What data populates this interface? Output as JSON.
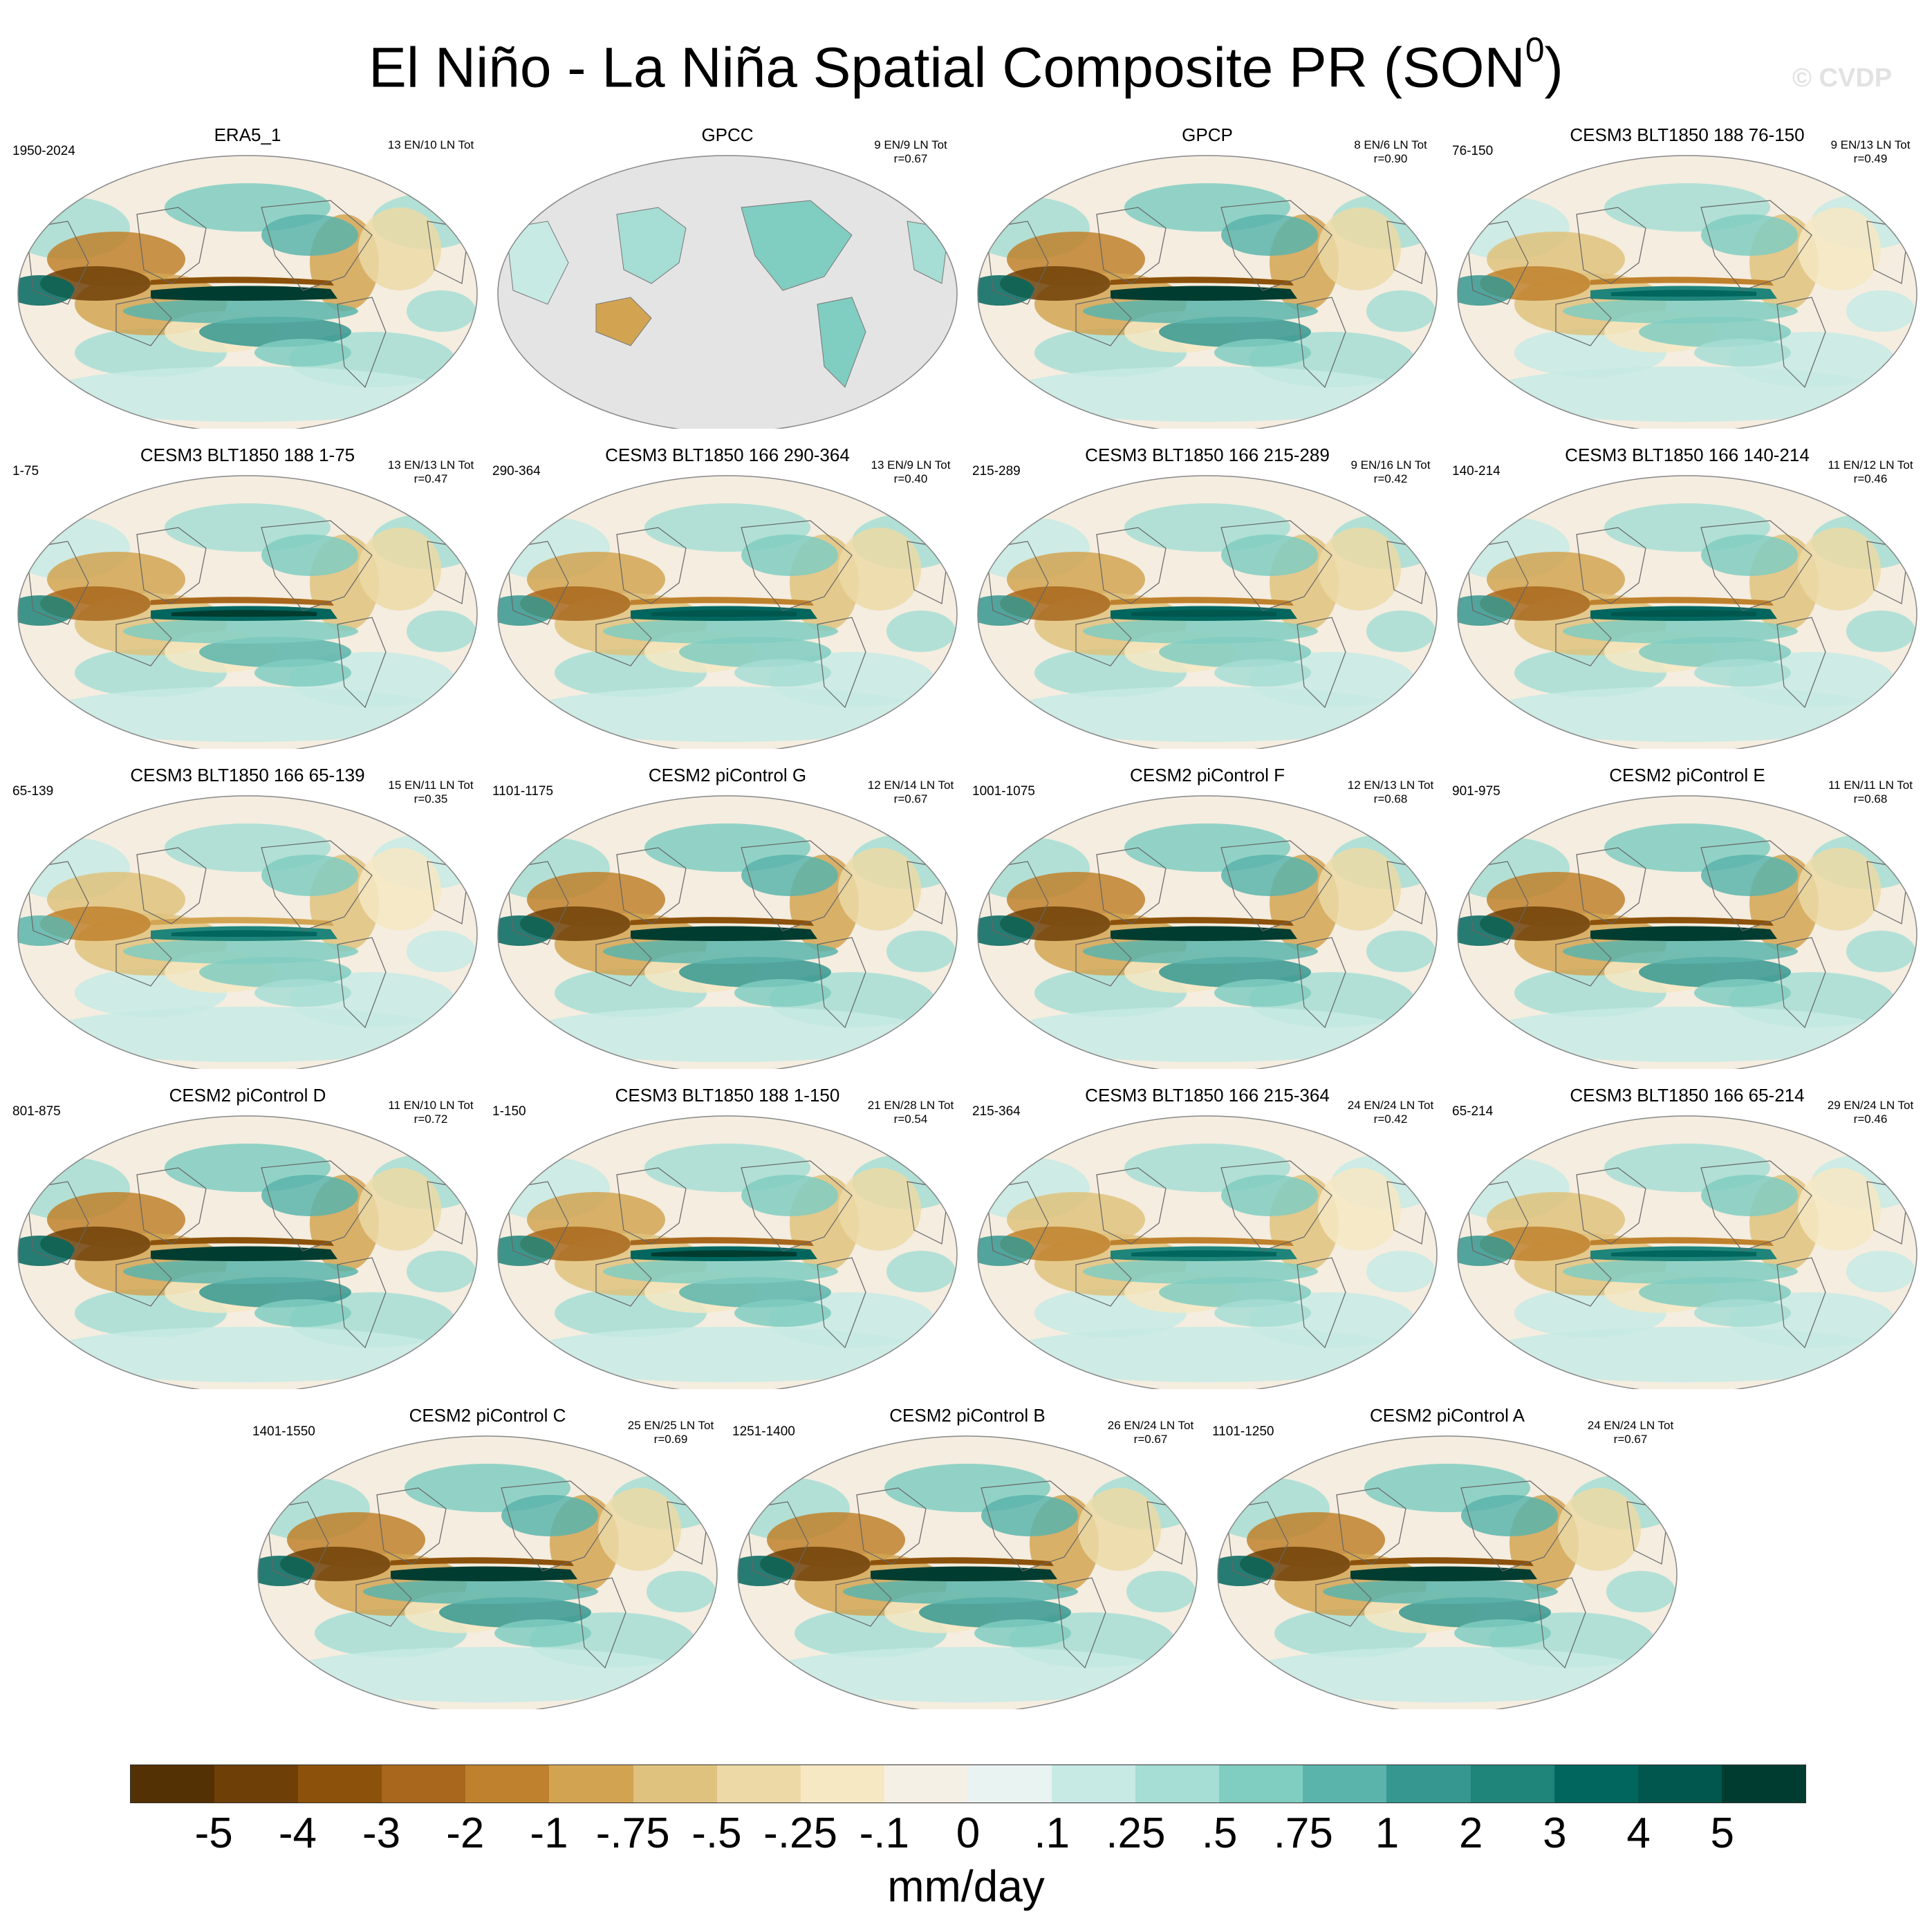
{
  "figure": {
    "title_main": "El Niño - La Niña Spatial Composite PR (SON",
    "title_sup": "0",
    "title_close": ")",
    "watermark": "© CVDP"
  },
  "panels": [
    {
      "title": "ERA5_1",
      "period": "1950-2024",
      "counts": "13 EN/10 LN Tot",
      "corr": "",
      "land_only": false,
      "strength": 1.0
    },
    {
      "title": "GPCC",
      "period": "",
      "counts": "9 EN/9 LN Tot",
      "corr": "r=0.67",
      "land_only": true,
      "strength": 0.8
    },
    {
      "title": "GPCP",
      "period": "",
      "counts": "8 EN/6 LN Tot",
      "corr": "r=0.90",
      "land_only": false,
      "strength": 1.0
    },
    {
      "title": "CESM3 BLT1850 188 76-150",
      "period": "76-150",
      "counts": "9 EN/13 LN Tot",
      "corr": "r=0.49",
      "land_only": false,
      "strength": 0.7
    },
    {
      "title": "CESM3 BLT1850 188 1-75",
      "period": "1-75",
      "counts": "13 EN/13 LN Tot",
      "corr": "r=0.47",
      "land_only": false,
      "strength": 0.8
    },
    {
      "title": "CESM3 BLT1850 166 290-364",
      "period": "290-364",
      "counts": "13 EN/9 LN Tot",
      "corr": "r=0.40",
      "land_only": false,
      "strength": 0.75
    },
    {
      "title": "CESM3 BLT1850 166 215-289",
      "period": "215-289",
      "counts": "9 EN/16 LN Tot",
      "corr": "r=0.42",
      "land_only": false,
      "strength": 0.75
    },
    {
      "title": "CESM3 BLT1850 166 140-214",
      "period": "140-214",
      "counts": "11 EN/12 LN Tot",
      "corr": "r=0.46",
      "land_only": false,
      "strength": 0.75
    },
    {
      "title": "CESM3 BLT1850 166 65-139",
      "period": "65-139",
      "counts": "15 EN/11 LN Tot",
      "corr": "r=0.35",
      "land_only": false,
      "strength": 0.65
    },
    {
      "title": "CESM2 piControl G",
      "period": "1101-1175",
      "counts": "12 EN/14 LN Tot",
      "corr": "r=0.67",
      "land_only": false,
      "strength": 1.0
    },
    {
      "title": "CESM2 piControl F",
      "period": "1001-1075",
      "counts": "12 EN/13 LN Tot",
      "corr": "r=0.68",
      "land_only": false,
      "strength": 1.0
    },
    {
      "title": "CESM2 piControl E",
      "period": "901-975",
      "counts": "11 EN/11 LN Tot",
      "corr": "r=0.68",
      "land_only": false,
      "strength": 1.0
    },
    {
      "title": "CESM2 piControl D",
      "period": "801-875",
      "counts": "11 EN/10 LN Tot",
      "corr": "r=0.72",
      "land_only": false,
      "strength": 1.0
    },
    {
      "title": "CESM3 BLT1850 188 1-150",
      "period": "1-150",
      "counts": "21 EN/28 LN Tot",
      "corr": "r=0.54",
      "land_only": false,
      "strength": 0.8
    },
    {
      "title": "CESM3 BLT1850 166 215-364",
      "period": "215-364",
      "counts": "24 EN/24 LN Tot",
      "corr": "r=0.42",
      "land_only": false,
      "strength": 0.7
    },
    {
      "title": "CESM3 BLT1850 166 65-214",
      "period": "65-214",
      "counts": "29 EN/24 LN Tot",
      "corr": "r=0.46",
      "land_only": false,
      "strength": 0.7
    },
    {
      "title": "CESM2 piControl C",
      "period": "1401-1550",
      "counts": "25 EN/25 LN Tot",
      "corr": "r=0.69",
      "land_only": false,
      "strength": 1.0
    },
    {
      "title": "CESM2 piControl B",
      "period": "1251-1400",
      "counts": "26 EN/24 LN Tot",
      "corr": "r=0.67",
      "land_only": false,
      "strength": 1.0
    },
    {
      "title": "CESM2 piControl A",
      "period": "1101-1250",
      "counts": "24 EN/24 LN Tot",
      "corr": "r=0.67",
      "land_only": false,
      "strength": 1.0
    }
  ],
  "colorbar": {
    "colors": [
      "#543005",
      "#6f3f08",
      "#8c510a",
      "#a8671c",
      "#bf812d",
      "#d2a452",
      "#dfc27d",
      "#ecd9a6",
      "#f6e8c3",
      "#f5f0e6",
      "#e9f3f2",
      "#c7eae5",
      "#a6ddd4",
      "#80cdc1",
      "#5ab4ac",
      "#35978f",
      "#1f8479",
      "#01665e",
      "#01564d",
      "#003c30"
    ],
    "labels": [
      "-5",
      "-4",
      "-3",
      "-2",
      "-1",
      "-.75",
      "-.5",
      "-.25",
      "-.1",
      "0",
      ".1",
      ".25",
      ".5",
      ".75",
      "1",
      "2",
      "3",
      "4",
      "5"
    ],
    "units": "mm/day"
  }
}
